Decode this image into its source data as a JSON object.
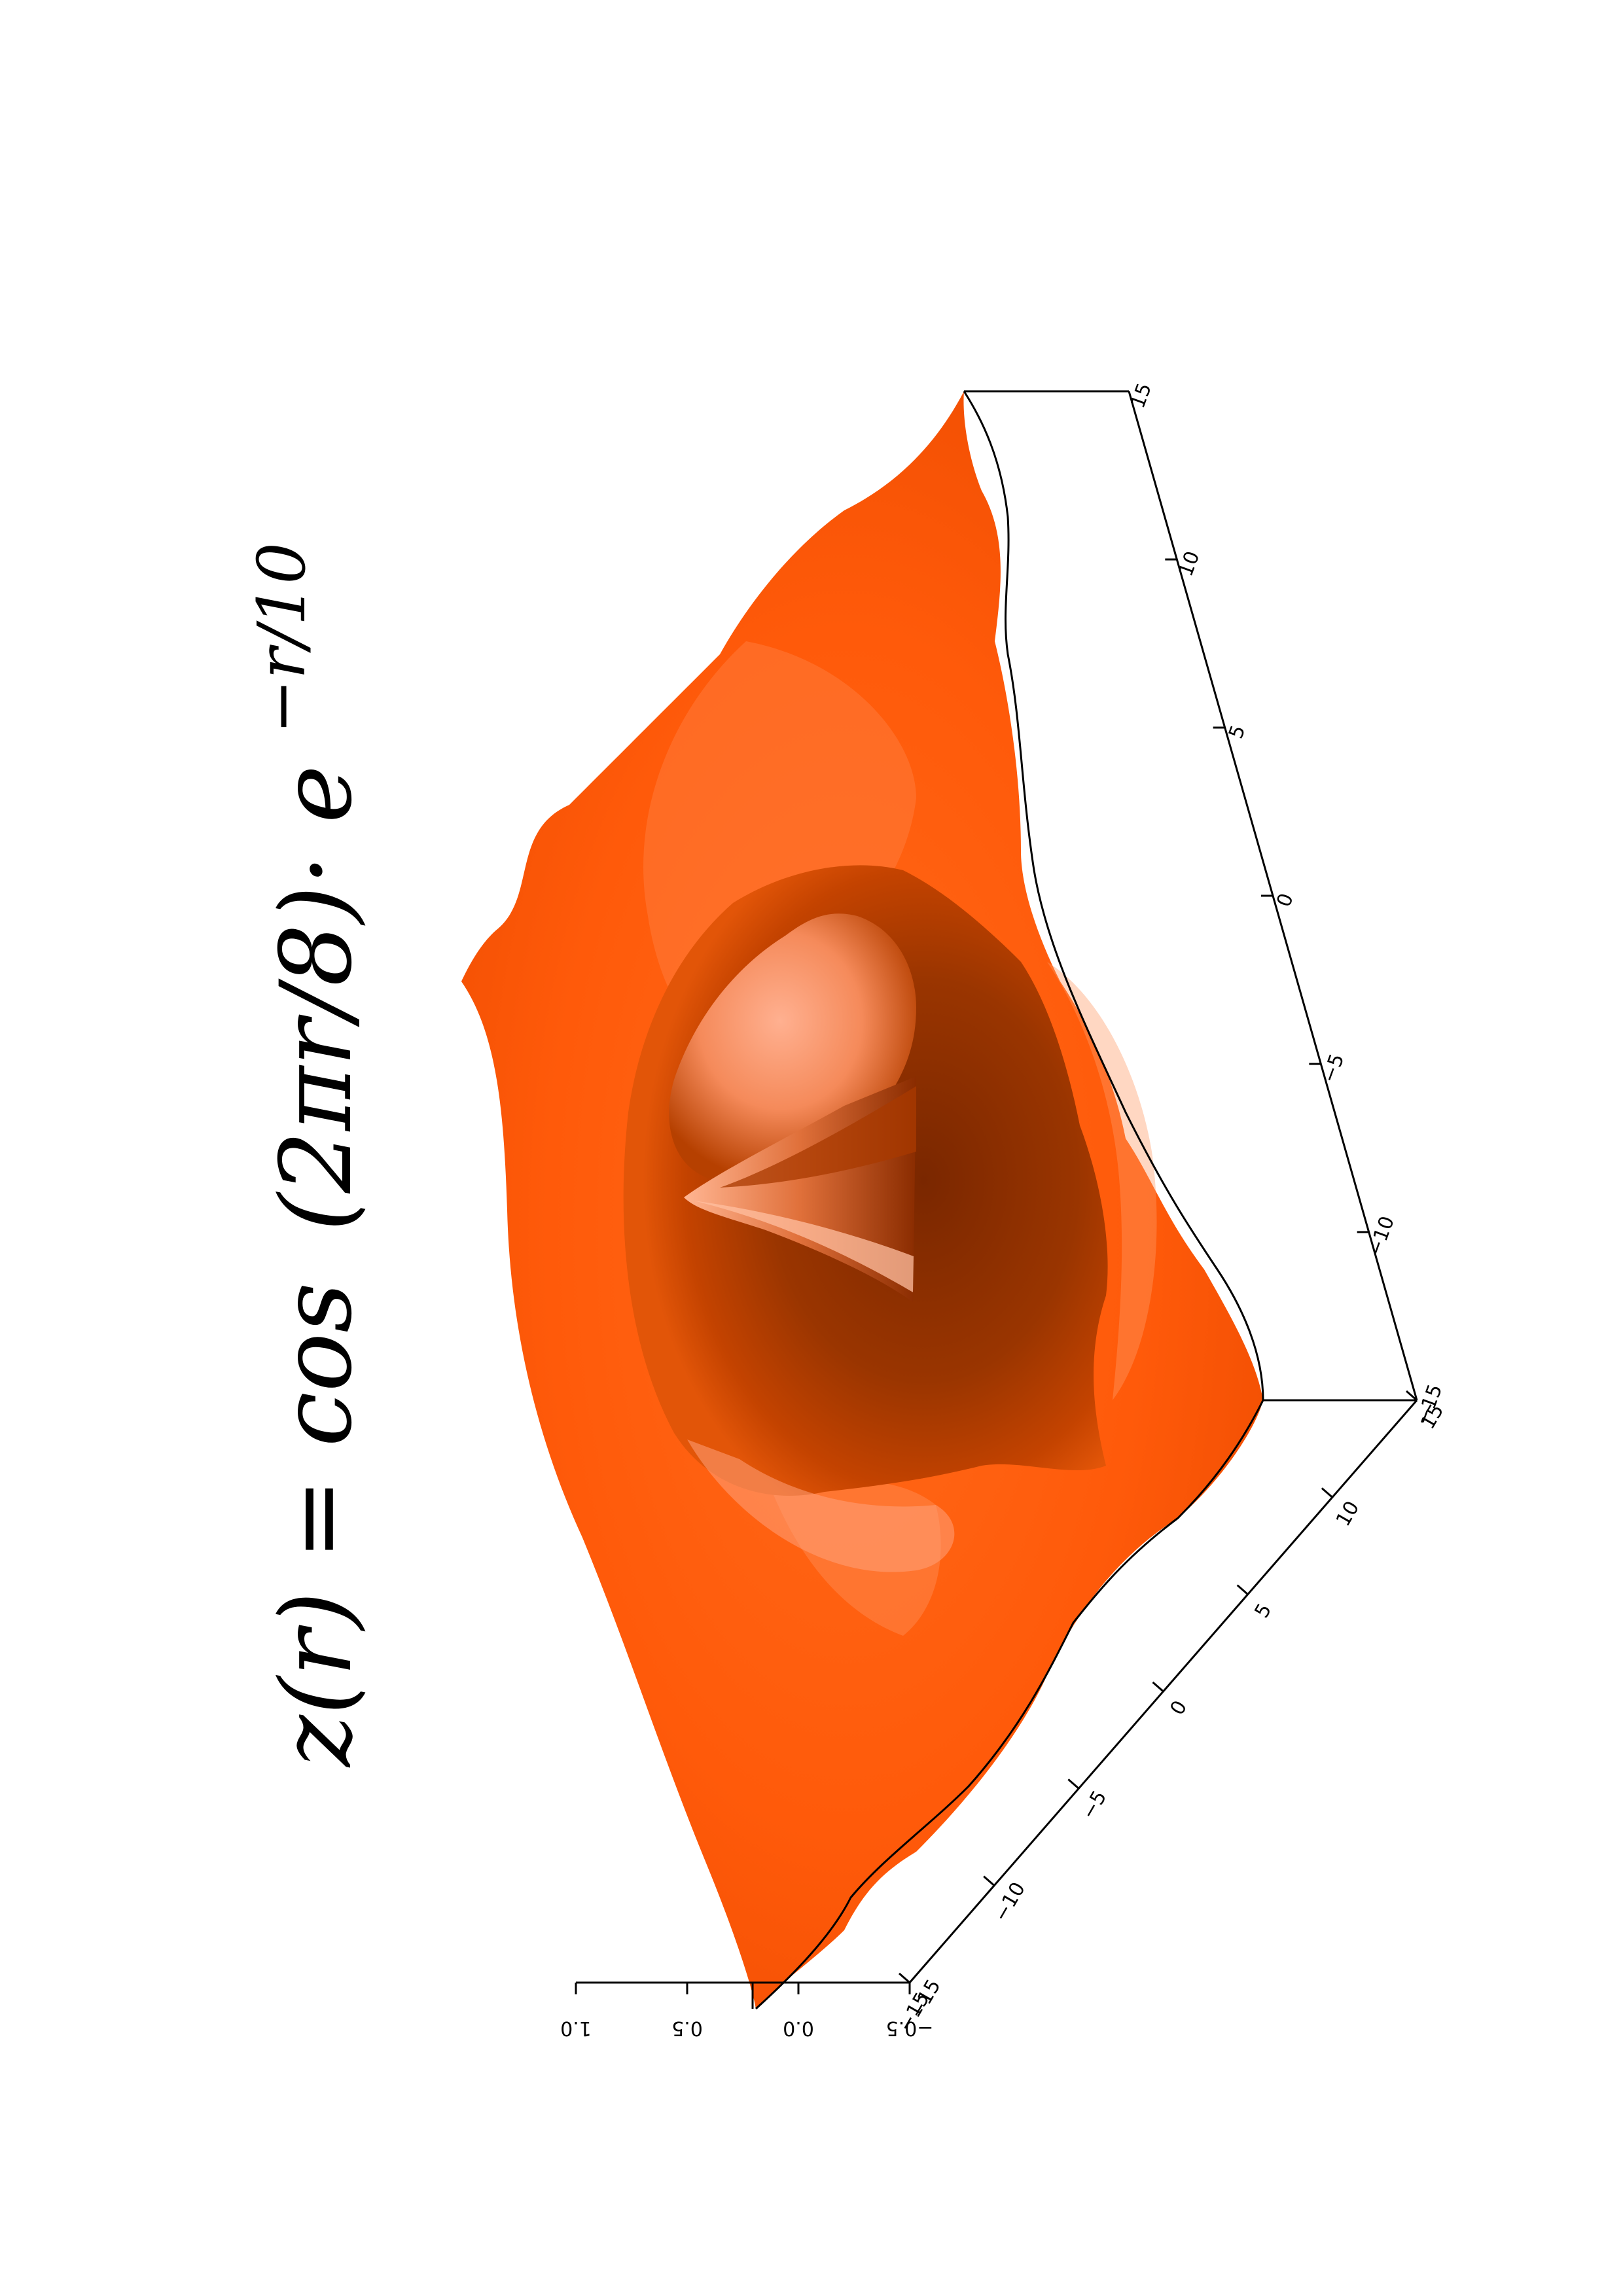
{
  "chart_data": {
    "type": "surface",
    "title": {
      "lhs": "z(r) = cos",
      "arg": "(2πr/8)·",
      "base": "e",
      "exponent": "−r/10"
    },
    "xlabel": "",
    "ylabel": "",
    "zlabel": "",
    "x_range": [
      -15,
      15
    ],
    "y_range": [
      -15,
      15
    ],
    "z_range": [
      -0.5,
      1.0
    ],
    "x_ticks": [
      "−15",
      "−10",
      "−5",
      "0",
      "5",
      "10",
      "15"
    ],
    "y_ticks": [
      "−15",
      "−10",
      "−5",
      "0",
      "5",
      "10",
      "15"
    ],
    "z_ticks": [
      "−0.5",
      "0.0",
      "0.5",
      "1.0"
    ],
    "function": "cos(2*pi*r/8) * exp(-r/10)",
    "surface_color": "#ff5a0a",
    "shadow_color": "#8c2d00",
    "highlight_color": "#ffa882",
    "grid": false,
    "orientation": "rotated 90 degrees clockwise"
  }
}
